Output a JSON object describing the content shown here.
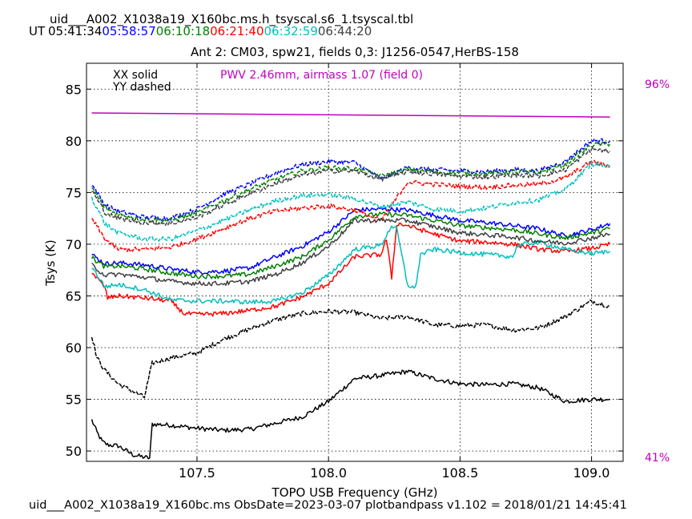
{
  "header": {
    "line1": "uid___A002_X1038a19_X160bc.ms.h_tsyscal.s6_1.tsyscal.tbl",
    "ut_prefix": "UT",
    "times": [
      {
        "label": "05:41:34",
        "color": "#000000"
      },
      {
        "label": "05:58:57",
        "color": "#0000ff"
      },
      {
        "label": "06:10:18",
        "color": "#008000"
      },
      {
        "label": "06:21:40",
        "color": "#ff0000"
      },
      {
        "label": "06:32:59",
        "color": "#00bfbf"
      },
      {
        "label": "06:44:20",
        "color": "#404040"
      }
    ]
  },
  "footer": "uid___A002_X1038a19_X160bc.ms  ObsDate=2023-03-07   plotbandpass v1.102 = 2018/01/21 14:45:41",
  "chart_data": {
    "type": "line",
    "title": "Ant 2: CM03,  spw21,  fields 0,3: J1256-0547,HerBS-158",
    "xlabel": "TOPO USB Frequency (GHz)",
    "ylabel": "Tsys (K)",
    "xlim": [
      107.08,
      109.12
    ],
    "ylim": [
      49,
      87.5
    ],
    "xticks": [
      107.5,
      108.0,
      108.5,
      109.0
    ],
    "xtick_labels": [
      "107.5",
      "108.0",
      "108.5",
      "109.0"
    ],
    "yticks": [
      50,
      55,
      60,
      65,
      70,
      75,
      80,
      85
    ],
    "ytick_labels": [
      "50",
      "55",
      "60",
      "65",
      "70",
      "75",
      "80",
      "85"
    ],
    "grid": true,
    "legend_text": {
      "xx": "XX solid",
      "yy": "YY dashed"
    },
    "pwv_label": "PWV 2.46mm, airmass 1.07 (field 0)",
    "pwv_color": "#c000c0",
    "right_axis_labels": [
      {
        "label": "96%",
        "y": 85.5
      },
      {
        "label": "41%",
        "y": 49.4
      }
    ],
    "atm_transmission": {
      "color": "#c000c0",
      "x": [
        107.1,
        109.07
      ],
      "y": [
        82.7,
        82.3
      ]
    },
    "series": [
      {
        "time": "05:41:34",
        "pol": "XX",
        "color": "#000000",
        "x": [
          107.1,
          107.12,
          107.14,
          107.16,
          107.2,
          107.26,
          107.32,
          107.33,
          107.4,
          107.5,
          107.6,
          107.7,
          107.8,
          107.9,
          108.0,
          108.1,
          108.2,
          108.3,
          108.4,
          108.5,
          108.6,
          108.7,
          108.8,
          108.9,
          109.0,
          109.07
        ],
        "y": [
          53.0,
          51.8,
          50.9,
          50.6,
          50.5,
          49.6,
          49.3,
          52.6,
          52.5,
          52.2,
          52.0,
          52.1,
          52.7,
          53.3,
          54.8,
          57.0,
          57.3,
          57.7,
          57.0,
          56.5,
          56.4,
          56.5,
          56.1,
          54.8,
          55.0,
          55.0
        ]
      },
      {
        "time": "05:41:34",
        "pol": "YY",
        "color": "#000000",
        "x": [
          107.1,
          107.12,
          107.15,
          107.2,
          107.3,
          107.33,
          107.4,
          107.5,
          107.6,
          107.7,
          107.8,
          107.9,
          108.0,
          108.1,
          108.2,
          108.3,
          108.4,
          108.5,
          108.6,
          108.7,
          108.8,
          108.9,
          109.0,
          109.07
        ],
        "y": [
          61.2,
          59.0,
          57.8,
          56.5,
          55.2,
          58.5,
          59.0,
          59.5,
          60.8,
          61.8,
          62.7,
          63.3,
          63.5,
          63.4,
          62.8,
          63.0,
          62.2,
          62.1,
          62.2,
          61.7,
          61.9,
          63.0,
          64.5,
          64.0
        ]
      },
      {
        "time": "05:58:57",
        "pol": "XX",
        "color": "#0000ff",
        "x": [
          107.1,
          107.15,
          107.2,
          107.3,
          107.4,
          107.5,
          107.6,
          107.7,
          107.8,
          107.9,
          108.0,
          108.1,
          108.2,
          108.3,
          108.4,
          108.5,
          108.6,
          108.7,
          108.8,
          108.9,
          109.0,
          109.07
        ],
        "y": [
          69.0,
          68.1,
          68.2,
          68.0,
          67.6,
          67.3,
          67.4,
          67.7,
          68.8,
          69.8,
          71.2,
          73.3,
          73.4,
          73.3,
          72.8,
          72.3,
          72.1,
          71.8,
          71.5,
          70.8,
          71.4,
          72.0
        ]
      },
      {
        "time": "05:58:57",
        "pol": "YY",
        "color": "#0000ff",
        "x": [
          107.1,
          107.15,
          107.2,
          107.3,
          107.4,
          107.5,
          107.6,
          107.7,
          107.8,
          107.9,
          108.0,
          108.1,
          108.2,
          108.3,
          108.4,
          108.5,
          108.6,
          108.7,
          108.8,
          108.9,
          109.0,
          109.07
        ],
        "y": [
          75.8,
          73.8,
          73.2,
          72.6,
          72.5,
          73.4,
          74.8,
          75.8,
          76.9,
          77.7,
          78.0,
          77.9,
          76.3,
          77.4,
          77.2,
          77.1,
          77.0,
          77.2,
          77.1,
          78.0,
          80.0,
          80.0
        ]
      },
      {
        "time": "06:10:18",
        "pol": "XX",
        "color": "#008000",
        "x": [
          107.1,
          107.15,
          107.2,
          107.3,
          107.4,
          107.5,
          107.6,
          107.7,
          107.8,
          107.9,
          108.0,
          108.1,
          108.2,
          108.3,
          108.4,
          108.5,
          108.6,
          108.7,
          108.8,
          108.9,
          109.0,
          109.07
        ],
        "y": [
          68.7,
          67.8,
          67.9,
          67.6,
          67.2,
          66.9,
          66.9,
          67.1,
          67.9,
          68.8,
          70.4,
          72.7,
          72.9,
          72.8,
          72.3,
          71.8,
          71.6,
          71.4,
          71.0,
          70.6,
          71.1,
          71.5
        ]
      },
      {
        "time": "06:10:18",
        "pol": "YY",
        "color": "#008000",
        "x": [
          107.1,
          107.15,
          107.2,
          107.3,
          107.4,
          107.5,
          107.6,
          107.7,
          107.8,
          107.9,
          108.0,
          108.1,
          108.2,
          108.3,
          108.4,
          108.5,
          108.6,
          108.7,
          108.8,
          108.9,
          109.0,
          109.07
        ],
        "y": [
          75.5,
          73.5,
          72.9,
          72.4,
          72.3,
          73.0,
          74.2,
          75.3,
          76.3,
          77.1,
          77.4,
          77.3,
          76.6,
          77.2,
          77.0,
          76.9,
          76.8,
          77.0,
          76.9,
          77.7,
          79.6,
          79.7
        ]
      },
      {
        "time": "06:21:40",
        "pol": "XX",
        "color": "#ff0000",
        "x": [
          107.1,
          107.15,
          107.16,
          107.2,
          107.3,
          107.4,
          107.45,
          107.5,
          107.6,
          107.7,
          107.8,
          107.9,
          108.0,
          108.1,
          108.2,
          108.22,
          108.24,
          108.26,
          108.3,
          108.4,
          108.5,
          108.6,
          108.7,
          108.8,
          108.9,
          109.0,
          109.07
        ],
        "y": [
          67.3,
          65.8,
          64.8,
          65.0,
          64.8,
          64.5,
          63.3,
          63.2,
          63.3,
          63.6,
          64.0,
          64.9,
          66.2,
          68.8,
          69.0,
          70.5,
          66.8,
          72.0,
          71.8,
          71.0,
          70.3,
          70.2,
          70.0,
          69.5,
          69.3,
          69.6,
          70.0
        ]
      },
      {
        "time": "06:21:40",
        "pol": "YY",
        "color": "#ff0000",
        "x": [
          107.1,
          107.15,
          107.2,
          107.3,
          107.4,
          107.5,
          107.6,
          107.7,
          107.8,
          107.9,
          108.0,
          108.1,
          108.2,
          108.3,
          108.4,
          108.5,
          108.6,
          108.7,
          108.8,
          108.9,
          109.0,
          109.07
        ],
        "y": [
          72.5,
          70.5,
          69.5,
          69.5,
          69.7,
          70.5,
          71.5,
          72.5,
          73.2,
          73.5,
          73.7,
          73.3,
          72.3,
          76.0,
          75.8,
          75.6,
          75.5,
          75.7,
          75.8,
          76.4,
          78.0,
          77.5
        ]
      },
      {
        "time": "06:32:59",
        "pol": "XX",
        "color": "#00bfbf",
        "x": [
          107.1,
          107.15,
          107.2,
          107.3,
          107.4,
          107.5,
          107.6,
          107.7,
          107.8,
          107.9,
          108.0,
          108.1,
          108.2,
          108.24,
          108.26,
          108.3,
          108.33,
          108.35,
          108.4,
          108.5,
          108.6,
          108.7,
          108.72,
          108.8,
          108.9,
          109.0,
          109.07
        ],
        "y": [
          67.8,
          65.9,
          66.1,
          65.6,
          64.6,
          64.5,
          64.5,
          64.4,
          64.5,
          65.3,
          67.0,
          69.5,
          69.9,
          71.8,
          71.4,
          66.1,
          65.7,
          69.0,
          69.5,
          69.2,
          69.0,
          68.8,
          69.9,
          70.2,
          69.5,
          69.1,
          69.3
        ]
      },
      {
        "time": "06:32:59",
        "pol": "YY",
        "color": "#00bfbf",
        "x": [
          107.1,
          107.15,
          107.2,
          107.3,
          107.4,
          107.5,
          107.6,
          107.7,
          107.8,
          107.9,
          108.0,
          108.1,
          108.2,
          108.3,
          108.4,
          108.5,
          108.6,
          108.7,
          108.8,
          108.9,
          109.0,
          109.07
        ],
        "y": [
          74.5,
          72.0,
          71.1,
          70.5,
          70.5,
          71.3,
          72.3,
          73.3,
          74.2,
          74.7,
          74.8,
          74.4,
          73.6,
          74.1,
          73.4,
          73.2,
          73.5,
          74.0,
          74.3,
          75.3,
          77.8,
          77.5
        ]
      },
      {
        "time": "06:44:20",
        "pol": "XX",
        "color": "#404040",
        "x": [
          107.1,
          107.15,
          107.2,
          107.3,
          107.4,
          107.5,
          107.6,
          107.7,
          107.8,
          107.9,
          108.0,
          108.1,
          108.2,
          108.3,
          108.4,
          108.5,
          108.6,
          108.7,
          108.8,
          108.9,
          109.0,
          109.07
        ],
        "y": [
          68.0,
          67.0,
          67.1,
          66.8,
          66.4,
          66.2,
          66.2,
          66.4,
          67.1,
          68.2,
          69.8,
          72.3,
          72.3,
          72.3,
          71.7,
          71.1,
          70.9,
          70.7,
          70.3,
          70.1,
          70.6,
          71.0
        ]
      },
      {
        "time": "06:44:20",
        "pol": "YY",
        "color": "#404040",
        "x": [
          107.1,
          107.15,
          107.2,
          107.3,
          107.4,
          107.5,
          107.6,
          107.7,
          107.8,
          107.9,
          108.0,
          108.1,
          108.2,
          108.3,
          108.4,
          108.5,
          108.6,
          108.7,
          108.8,
          108.9,
          109.0,
          109.07
        ],
        "y": [
          75.2,
          73.1,
          72.5,
          72.1,
          72.0,
          72.6,
          73.8,
          74.9,
          75.9,
          76.7,
          77.1,
          77.1,
          76.3,
          77.0,
          76.8,
          76.6,
          76.5,
          76.7,
          76.6,
          77.2,
          79.2,
          79.0
        ]
      }
    ]
  }
}
